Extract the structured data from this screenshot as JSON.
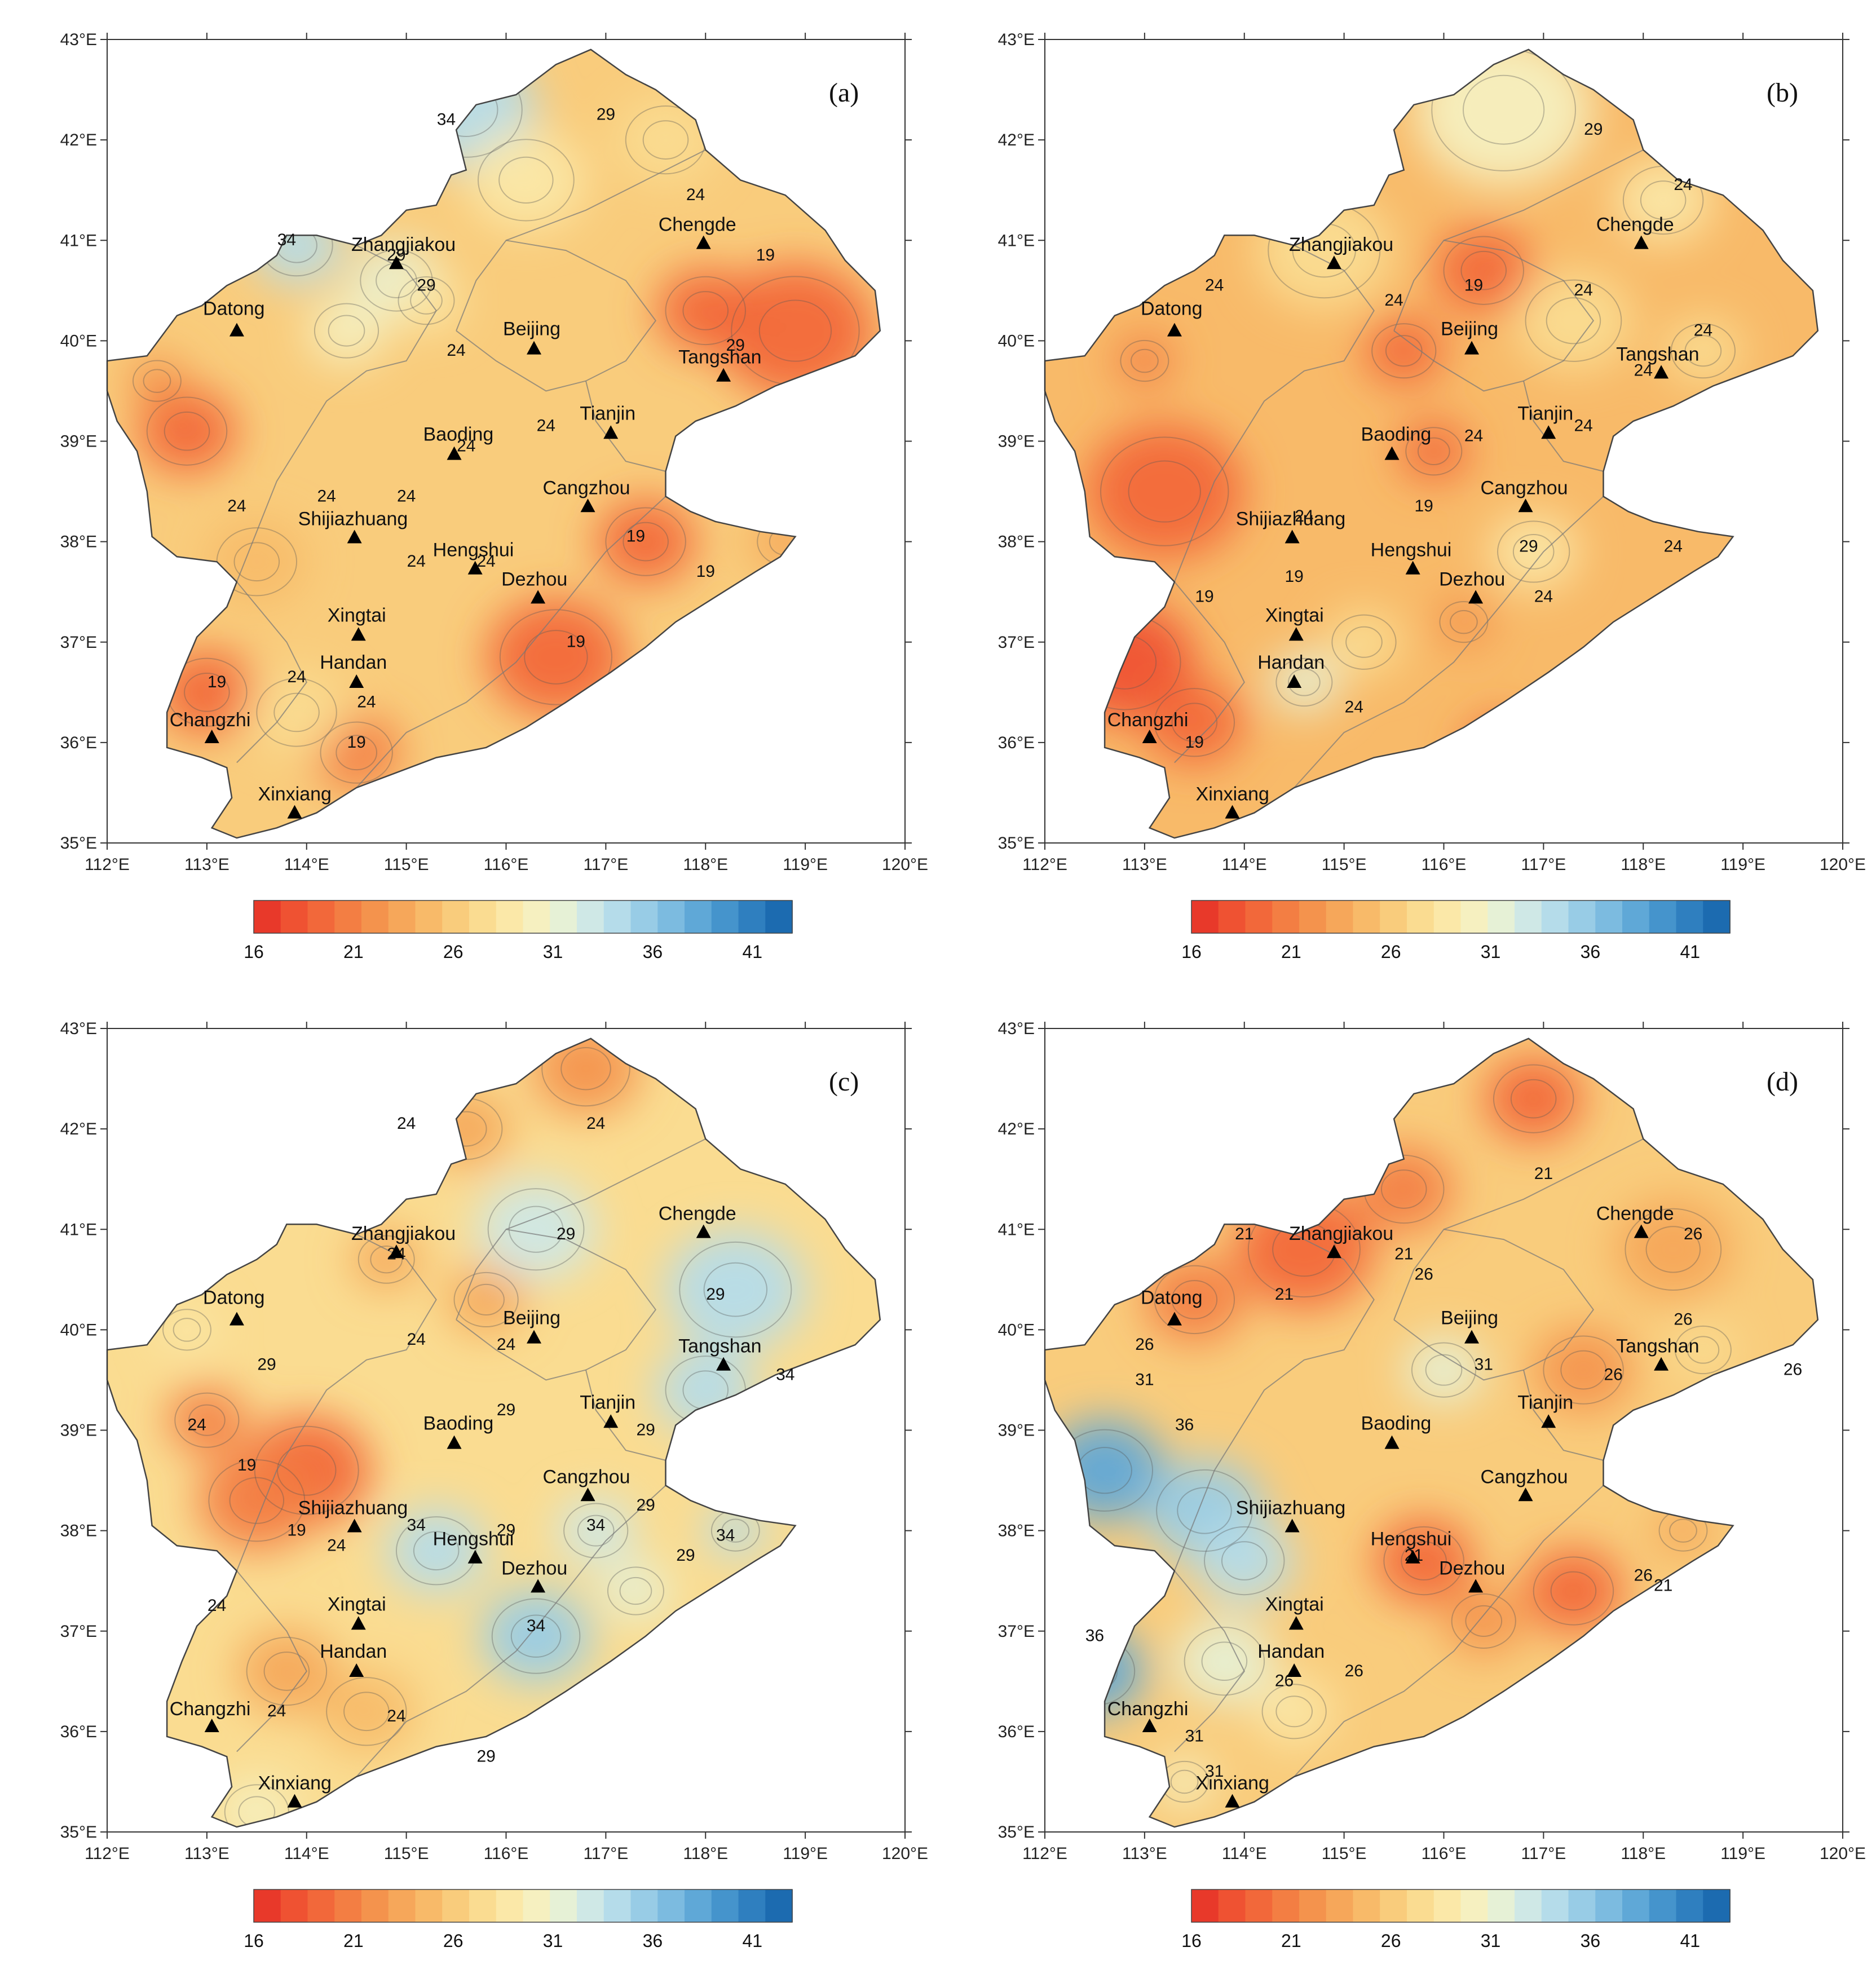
{
  "figure": {
    "x_tick_labels": [
      "112°E",
      "113°E",
      "114°E",
      "115°E",
      "116°E",
      "117°E",
      "118°E",
      "119°E",
      "120°E"
    ],
    "y_tick_labels": [
      "35°E",
      "36°E",
      "37°E",
      "38°E",
      "39°E",
      "40°E",
      "41°E",
      "42°E",
      "43°E"
    ],
    "colorbar_tick_labels": [
      "16",
      "21",
      "26",
      "31",
      "36",
      "41"
    ],
    "colorbar_colors": [
      "#e8392a",
      "#ef5232",
      "#f2683a",
      "#f37e43",
      "#f4934d",
      "#f6a75a",
      "#f8ba69",
      "#f9cc7c",
      "#fadc91",
      "#fbe8a8",
      "#f6f0c0",
      "#e6f1d6",
      "#cfe8e6",
      "#b5dcea",
      "#98cce6",
      "#7cbbe0",
      "#5fa8d7",
      "#4594cc",
      "#2f7fbf",
      "#1c6bb0"
    ],
    "cities": [
      "Datong",
      "Zhangjiakou",
      "Chengde",
      "Beijing",
      "Tangshan",
      "Tianjin",
      "Baoding",
      "Shijiazhuang",
      "Cangzhou",
      "Hengshui",
      "Dezhou",
      "Xingtai",
      "Handan",
      "Changzhi",
      "Xinxiang"
    ]
  },
  "panels": [
    {
      "id": "a",
      "label": "(a)",
      "contour_labels": [
        {
          "text": "34",
          "lon": 115.4,
          "lat": 42.15
        },
        {
          "text": "29",
          "lon": 117.0,
          "lat": 42.2
        },
        {
          "text": "34",
          "lon": 113.8,
          "lat": 40.95
        },
        {
          "text": "29",
          "lon": 114.9,
          "lat": 40.8
        },
        {
          "text": "29",
          "lon": 115.2,
          "lat": 40.5
        },
        {
          "text": "24",
          "lon": 117.9,
          "lat": 41.4
        },
        {
          "text": "19",
          "lon": 118.6,
          "lat": 40.8
        },
        {
          "text": "29",
          "lon": 118.3,
          "lat": 39.9
        },
        {
          "text": "24",
          "lon": 115.5,
          "lat": 39.85
        },
        {
          "text": "24",
          "lon": 116.4,
          "lat": 39.1
        },
        {
          "text": "24",
          "lon": 115.6,
          "lat": 38.9
        },
        {
          "text": "24",
          "lon": 113.3,
          "lat": 38.3
        },
        {
          "text": "24",
          "lon": 114.2,
          "lat": 38.4
        },
        {
          "text": "24",
          "lon": 115.0,
          "lat": 38.4
        },
        {
          "text": "24",
          "lon": 115.1,
          "lat": 37.75
        },
        {
          "text": "24",
          "lon": 115.8,
          "lat": 37.75
        },
        {
          "text": "19",
          "lon": 117.3,
          "lat": 38.0
        },
        {
          "text": "19",
          "lon": 118.0,
          "lat": 37.65
        },
        {
          "text": "19",
          "lon": 116.7,
          "lat": 36.95
        },
        {
          "text": "19",
          "lon": 113.1,
          "lat": 36.55
        },
        {
          "text": "24",
          "lon": 113.9,
          "lat": 36.6
        },
        {
          "text": "24",
          "lon": 114.6,
          "lat": 36.35
        },
        {
          "text": "19",
          "lon": 114.5,
          "lat": 35.95
        }
      ]
    },
    {
      "id": "b",
      "label": "(b)",
      "contour_labels": [
        {
          "text": "29",
          "lon": 117.5,
          "lat": 42.05
        },
        {
          "text": "24",
          "lon": 118.4,
          "lat": 41.5
        },
        {
          "text": "24",
          "lon": 113.7,
          "lat": 40.5
        },
        {
          "text": "24",
          "lon": 115.5,
          "lat": 40.35
        },
        {
          "text": "19",
          "lon": 116.3,
          "lat": 40.5
        },
        {
          "text": "24",
          "lon": 117.4,
          "lat": 40.45
        },
        {
          "text": "24",
          "lon": 118.6,
          "lat": 40.05
        },
        {
          "text": "24",
          "lon": 118.0,
          "lat": 39.65
        },
        {
          "text": "24",
          "lon": 117.4,
          "lat": 39.1
        },
        {
          "text": "24",
          "lon": 116.3,
          "lat": 39.0
        },
        {
          "text": "19",
          "lon": 115.8,
          "lat": 38.3
        },
        {
          "text": "29",
          "lon": 116.85,
          "lat": 37.9
        },
        {
          "text": "24",
          "lon": 114.6,
          "lat": 38.2
        },
        {
          "text": "19",
          "lon": 114.5,
          "lat": 37.6
        },
        {
          "text": "19",
          "lon": 113.6,
          "lat": 37.4
        },
        {
          "text": "24",
          "lon": 117.0,
          "lat": 37.4
        },
        {
          "text": "24",
          "lon": 118.3,
          "lat": 37.9
        },
        {
          "text": "24",
          "lon": 115.1,
          "lat": 36.3
        },
        {
          "text": "19",
          "lon": 113.5,
          "lat": 35.95
        }
      ]
    },
    {
      "id": "c",
      "label": "(c)",
      "contour_labels": [
        {
          "text": "24",
          "lon": 115.0,
          "lat": 42.0
        },
        {
          "text": "24",
          "lon": 116.9,
          "lat": 42.0
        },
        {
          "text": "24",
          "lon": 114.9,
          "lat": 40.7
        },
        {
          "text": "29",
          "lon": 116.6,
          "lat": 40.9
        },
        {
          "text": "29",
          "lon": 118.1,
          "lat": 40.3
        },
        {
          "text": "29",
          "lon": 113.6,
          "lat": 39.6
        },
        {
          "text": "24",
          "lon": 115.1,
          "lat": 39.85
        },
        {
          "text": "24",
          "lon": 116.0,
          "lat": 39.8
        },
        {
          "text": "34",
          "lon": 118.8,
          "lat": 39.5
        },
        {
          "text": "24",
          "lon": 112.9,
          "lat": 39.0
        },
        {
          "text": "19",
          "lon": 113.4,
          "lat": 38.6
        },
        {
          "text": "29",
          "lon": 116.0,
          "lat": 39.15
        },
        {
          "text": "29",
          "lon": 117.4,
          "lat": 38.95
        },
        {
          "text": "19",
          "lon": 113.9,
          "lat": 37.95
        },
        {
          "text": "24",
          "lon": 114.3,
          "lat": 37.8
        },
        {
          "text": "34",
          "lon": 115.1,
          "lat": 38.0
        },
        {
          "text": "29",
          "lon": 116.0,
          "lat": 37.95
        },
        {
          "text": "34",
          "lon": 116.9,
          "lat": 38.0
        },
        {
          "text": "29",
          "lon": 117.4,
          "lat": 38.2
        },
        {
          "text": "29",
          "lon": 117.8,
          "lat": 37.7
        },
        {
          "text": "34",
          "lon": 118.2,
          "lat": 37.9
        },
        {
          "text": "24",
          "lon": 113.1,
          "lat": 37.2
        },
        {
          "text": "34",
          "lon": 116.3,
          "lat": 37.0
        },
        {
          "text": "24",
          "lon": 113.7,
          "lat": 36.15
        },
        {
          "text": "24",
          "lon": 114.9,
          "lat": 36.1
        },
        {
          "text": "29",
          "lon": 115.8,
          "lat": 35.7
        }
      ]
    },
    {
      "id": "d",
      "label": "(d)",
      "contour_labels": [
        {
          "text": "21",
          "lon": 117.0,
          "lat": 41.5
        },
        {
          "text": "21",
          "lon": 114.0,
          "lat": 40.9
        },
        {
          "text": "21",
          "lon": 115.6,
          "lat": 40.7
        },
        {
          "text": "21",
          "lon": 114.4,
          "lat": 40.3
        },
        {
          "text": "26",
          "lon": 115.8,
          "lat": 40.5
        },
        {
          "text": "26",
          "lon": 118.5,
          "lat": 40.9
        },
        {
          "text": "26",
          "lon": 118.4,
          "lat": 40.05
        },
        {
          "text": "26",
          "lon": 119.5,
          "lat": 39.55
        },
        {
          "text": "26",
          "lon": 117.7,
          "lat": 39.5
        },
        {
          "text": "26",
          "lon": 113.0,
          "lat": 39.8
        },
        {
          "text": "31",
          "lon": 113.0,
          "lat": 39.45
        },
        {
          "text": "31",
          "lon": 116.4,
          "lat": 39.6
        },
        {
          "text": "36",
          "lon": 113.4,
          "lat": 39.0
        },
        {
          "text": "21",
          "lon": 115.7,
          "lat": 37.7
        },
        {
          "text": "21",
          "lon": 118.2,
          "lat": 37.4
        },
        {
          "text": "26",
          "lon": 118.0,
          "lat": 37.5
        },
        {
          "text": "26",
          "lon": 115.1,
          "lat": 36.55
        },
        {
          "text": "26",
          "lon": 114.4,
          "lat": 36.45
        },
        {
          "text": "36",
          "lon": 112.5,
          "lat": 36.9
        },
        {
          "text": "31",
          "lon": 113.5,
          "lat": 35.9
        },
        {
          "text": "31",
          "lon": 113.7,
          "lat": 35.55
        }
      ]
    }
  ]
}
